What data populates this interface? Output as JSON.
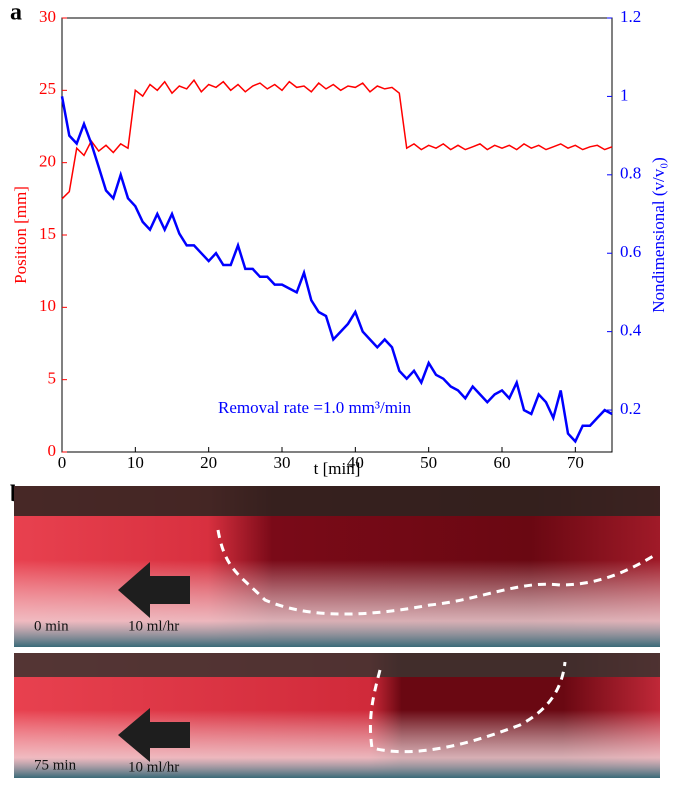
{
  "chart_data": {
    "type": "line",
    "panel_label": "a",
    "xlabel": "t [min]",
    "ylabel": "Position [mm]",
    "y2label": "Nondimensional (v/v₀)",
    "annotation": "Removal rate =1.0 mm³/min",
    "x": [
      0,
      1,
      2,
      3,
      4,
      5,
      6,
      7,
      8,
      9,
      10,
      11,
      12,
      13,
      14,
      15,
      16,
      17,
      18,
      19,
      20,
      21,
      22,
      23,
      24,
      25,
      26,
      27,
      28,
      29,
      30,
      31,
      32,
      33,
      34,
      35,
      36,
      37,
      38,
      39,
      40,
      41,
      42,
      43,
      44,
      45,
      46,
      47,
      48,
      49,
      50,
      51,
      52,
      53,
      54,
      55,
      56,
      57,
      58,
      59,
      60,
      61,
      62,
      63,
      64,
      65,
      66,
      67,
      68,
      69,
      70,
      71,
      72,
      73,
      74,
      75
    ],
    "xlim": [
      0,
      75
    ],
    "xticks": [
      0,
      10,
      20,
      30,
      40,
      50,
      60,
      70
    ],
    "ylim": [
      0,
      30
    ],
    "yticks": [
      0,
      5,
      10,
      15,
      20,
      25,
      30
    ],
    "y2lim": [
      0.093,
      1.2
    ],
    "y2ticks": [
      0.2,
      0.4,
      0.6,
      0.8,
      1,
      1.2
    ],
    "series": [
      {
        "name": "Position",
        "color": "#ff0000",
        "values": [
          17.5,
          18,
          21,
          20.5,
          21.5,
          20.8,
          21.2,
          20.7,
          21.3,
          21,
          25,
          24.6,
          25.4,
          25,
          25.6,
          24.8,
          25.3,
          25.1,
          25.7,
          24.9,
          25.4,
          25.2,
          25.6,
          25,
          25.4,
          24.9,
          25.3,
          25.5,
          25.1,
          25.4,
          25,
          25.6,
          25.2,
          25.3,
          24.9,
          25.5,
          25.1,
          25.4,
          25,
          25.3,
          25.2,
          25.5,
          24.9,
          25.3,
          25.1,
          25.2,
          24.8,
          21,
          21.3,
          20.9,
          21.2,
          21,
          21.3,
          20.9,
          21.2,
          20.9,
          21.1,
          21.3,
          20.9,
          21.2,
          21,
          21.2,
          20.9,
          21.3,
          21,
          21.2,
          20.9,
          21.1,
          21.3,
          21,
          21.2,
          20.9,
          21.1,
          21.2,
          20.9,
          21.1
        ]
      },
      {
        "name": "Nondimensional",
        "color": "#0000ff",
        "axis": "y2",
        "values": [
          1,
          0.9,
          0.88,
          0.93,
          0.88,
          0.82,
          0.76,
          0.74,
          0.8,
          0.74,
          0.72,
          0.68,
          0.66,
          0.7,
          0.66,
          0.7,
          0.65,
          0.62,
          0.62,
          0.6,
          0.58,
          0.6,
          0.57,
          0.57,
          0.62,
          0.56,
          0.56,
          0.54,
          0.54,
          0.52,
          0.52,
          0.51,
          0.5,
          0.55,
          0.48,
          0.45,
          0.44,
          0.38,
          0.4,
          0.42,
          0.45,
          0.4,
          0.38,
          0.36,
          0.38,
          0.36,
          0.3,
          0.28,
          0.3,
          0.27,
          0.32,
          0.29,
          0.28,
          0.26,
          0.25,
          0.23,
          0.26,
          0.24,
          0.22,
          0.24,
          0.25,
          0.23,
          0.27,
          0.2,
          0.19,
          0.24,
          0.22,
          0.18,
          0.25,
          0.14,
          0.12,
          0.16,
          0.16,
          0.18,
          0.2,
          0.19
        ]
      }
    ]
  },
  "panel_b": {
    "label": "b",
    "photos": [
      {
        "time": "0 min",
        "flow": "10 ml/hr"
      },
      {
        "time": "75 min",
        "flow": "10 ml/hr"
      }
    ]
  }
}
